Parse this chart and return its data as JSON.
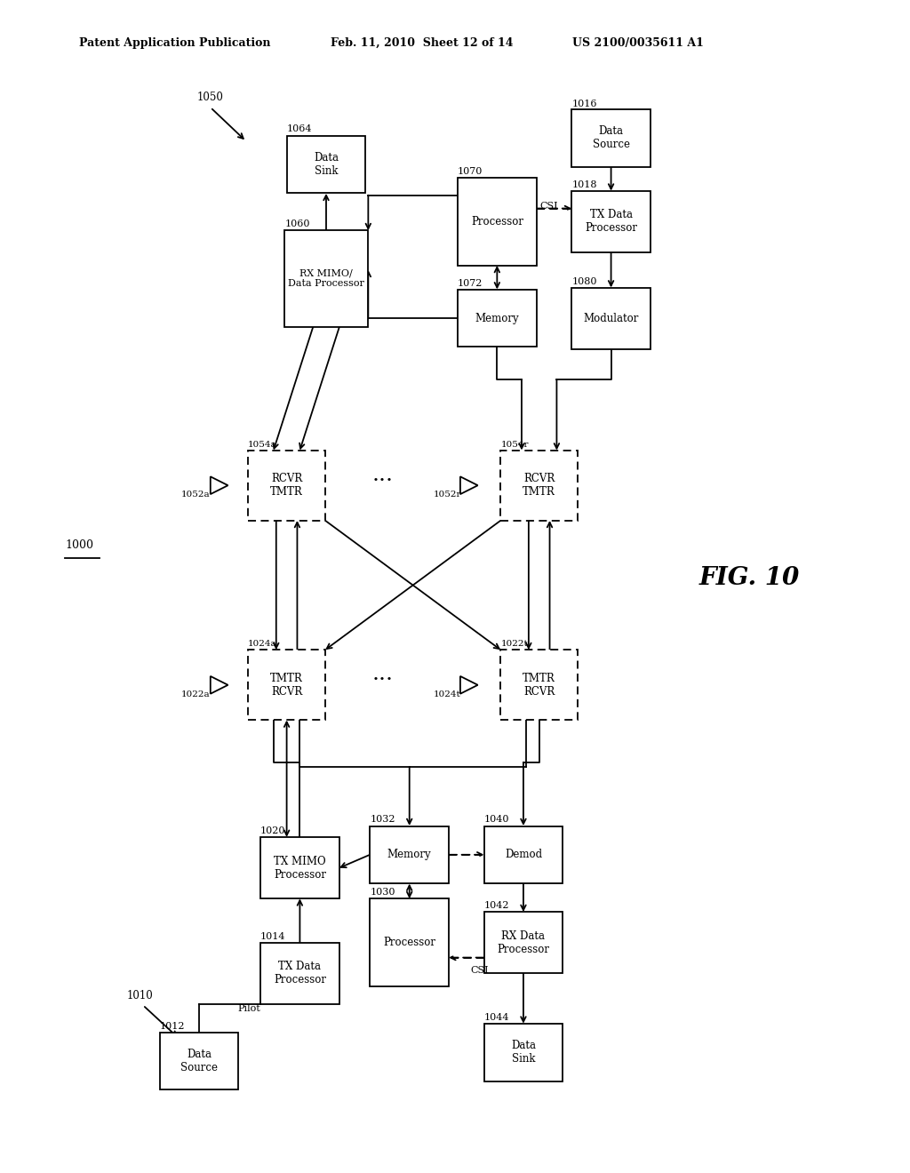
{
  "header_left": "Patent Application Publication",
  "header_mid": "Feb. 11, 2010  Sheet 12 of 14",
  "header_right": "US 2100/0035611 A1",
  "fig_caption": "FIG. 10",
  "bg_color": "#ffffff"
}
